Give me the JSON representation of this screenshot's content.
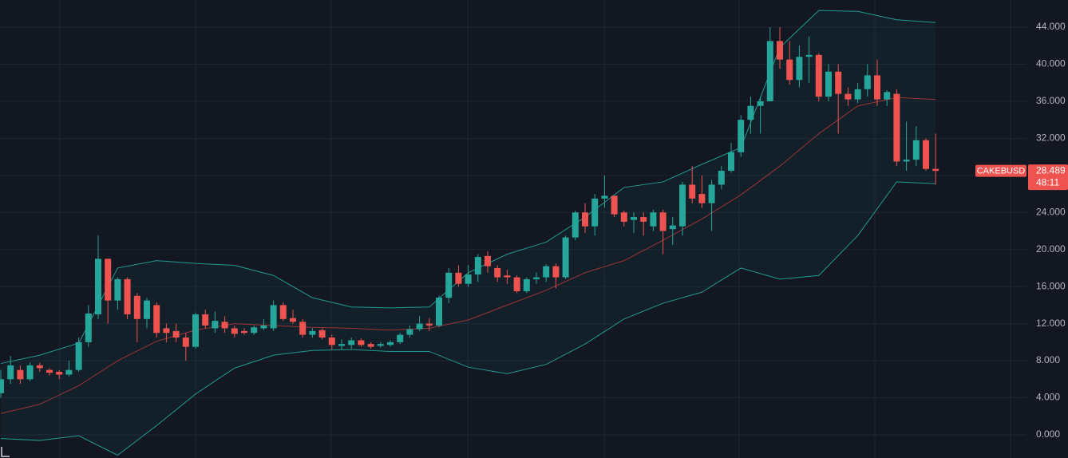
{
  "chart_data": {
    "type": "candlestick",
    "symbol": "CAKEBUSD",
    "last_price": 28.489,
    "countdown": "48:11",
    "up_color": "#26a69a",
    "down_color": "#ef5350",
    "grid": true,
    "ylim": [
      -2.5,
      46.93
    ],
    "yticks": [
      {
        "value": 0,
        "label": "0.000"
      },
      {
        "value": 4,
        "label": "4.000"
      },
      {
        "value": 8,
        "label": "8.000"
      },
      {
        "value": 12,
        "label": "12.000"
      },
      {
        "value": 16,
        "label": "16.000"
      },
      {
        "value": 20,
        "label": "20.000"
      },
      {
        "value": 24,
        "label": "24.000"
      },
      {
        "value": 28,
        "label": "28.000"
      },
      {
        "value": 32,
        "label": "32.000"
      },
      {
        "value": 36,
        "label": "36.000"
      },
      {
        "value": 40,
        "label": "40.000"
      },
      {
        "value": 44,
        "label": "44.000"
      }
    ],
    "open": [
      4.5,
      6,
      7,
      6,
      7.5,
      7,
      6.8,
      6.5,
      7,
      10,
      13,
      19,
      14.5,
      16.8,
      15,
      12.5,
      14,
      11.5,
      11.2,
      10.5,
      9.5,
      13,
      11.5,
      12.2,
      11.5,
      11.2,
      11,
      11.5,
      11.5,
      14,
      12.6,
      12.2,
      10.8,
      11.3,
      10.5,
      9.6,
      9.7,
      10.2,
      9.8,
      9.6,
      9.7,
      10,
      10.8,
      11.4,
      12,
      11.8,
      14.8,
      17.5,
      16.3,
      17.3,
      19.3,
      18,
      17.2,
      17,
      15.5,
      16.8,
      17,
      18.2,
      17,
      21.3,
      24,
      22.5,
      25.5,
      25.8,
      24,
      23.2,
      23.5,
      22.5,
      24,
      22.2,
      22.5,
      27,
      26,
      25,
      27,
      28.5,
      30.5,
      34,
      35.5,
      36,
      42.5,
      40.5,
      38.3,
      40.8,
      41,
      36.5,
      39.2,
      36.8,
      36.2,
      37.3,
      38.8,
      36.2,
      36.8,
      29.5,
      29.7,
      31.8,
      28.7
    ],
    "high": [
      7,
      8.5,
      7.5,
      7.8,
      7.8,
      7.2,
      7,
      8,
      10.5,
      14,
      21.5,
      19,
      17,
      17,
      15.3,
      14.8,
      14.3,
      12,
      12,
      11,
      13.2,
      13.5,
      13.3,
      12.8,
      11.8,
      11.5,
      11.8,
      12.5,
      14.5,
      14.3,
      13.5,
      12.5,
      11.5,
      11.5,
      10.8,
      10.3,
      10.5,
      10.4,
      10,
      10,
      10.2,
      11,
      11.8,
      12.8,
      12.6,
      15,
      18,
      18.3,
      18.3,
      19.5,
      19.8,
      18.3,
      17.8,
      17.2,
      17,
      17.5,
      18.4,
      18.5,
      21.5,
      24.2,
      25,
      26,
      28,
      25.8,
      24.2,
      24,
      24,
      24.3,
      24.3,
      23.5,
      27.3,
      29,
      28,
      27.5,
      29,
      31.5,
      34.5,
      36.5,
      36.5,
      44,
      44,
      42.5,
      42,
      43,
      41.2,
      40,
      40,
      37.5,
      38,
      40,
      40.5,
      37.2,
      37.3,
      33.8,
      33.3,
      32,
      32.5
    ],
    "low": [
      4,
      5.5,
      5.5,
      5.8,
      6.8,
      6.4,
      6,
      6.3,
      6.8,
      9.5,
      12.5,
      12,
      13.5,
      12.5,
      10,
      11.5,
      10.5,
      10,
      10,
      8,
      9.3,
      11.5,
      11,
      11,
      10.5,
      10.8,
      10.8,
      11.3,
      11.2,
      12.3,
      12,
      10.5,
      10.5,
      10.3,
      9.2,
      9.2,
      9.3,
      9.5,
      9.3,
      9.4,
      9.5,
      9.8,
      10.5,
      11.2,
      11.2,
      11.6,
      14.2,
      16,
      16,
      16.5,
      17.5,
      16.5,
      16.3,
      15.3,
      15.3,
      16.3,
      16.5,
      15.8,
      16.8,
      21,
      21.8,
      21.5,
      24.5,
      23.5,
      22.5,
      21.8,
      21.5,
      22,
      19.5,
      20.5,
      21.5,
      25,
      24.5,
      22,
      26.5,
      28.3,
      30,
      32.5,
      32.5,
      36,
      39.5,
      37.8,
      37.5,
      38,
      36,
      36,
      32.5,
      35.5,
      35.8,
      36.5,
      35.5,
      35.5,
      29,
      28.5,
      29,
      28.5,
      27
    ],
    "close": [
      6,
      7.5,
      6,
      7.5,
      7.2,
      6.7,
      6.5,
      7,
      10,
      13.1,
      19,
      14.5,
      16.8,
      13,
      12.5,
      14.5,
      11,
      11,
      10.5,
      9.5,
      13,
      11.8,
      12.3,
      11.5,
      10.9,
      11,
      11.6,
      11.8,
      14,
      12.5,
      12.2,
      10.8,
      11.2,
      10.5,
      9.7,
      9.8,
      10.2,
      9.7,
      9.5,
      9.8,
      10,
      10.8,
      11.4,
      12,
      11.8,
      14.8,
      17.5,
      16.3,
      17.3,
      19.2,
      18.2,
      17,
      17,
      15.5,
      16.8,
      17,
      18.2,
      17,
      21.3,
      24,
      22.5,
      25.5,
      25.8,
      23.8,
      23,
      23.5,
      23,
      24,
      22,
      22.6,
      27,
      25.5,
      25,
      27,
      28.5,
      30.5,
      34,
      35.5,
      36,
      42.5,
      40.5,
      38.3,
      40.8,
      41,
      36.5,
      39.2,
      36.8,
      36.2,
      37.3,
      38.8,
      36.2,
      37,
      29.5,
      29.7,
      31.8,
      28.7,
      28.489
    ],
    "bands": {
      "x": [
        0,
        4,
        8,
        12,
        16,
        20,
        24,
        28,
        32,
        36,
        40,
        44,
        48,
        52,
        56,
        60,
        64,
        68,
        72,
        76,
        80,
        84,
        88,
        92,
        96
      ],
      "upper": [
        7.7,
        8.6,
        9.9,
        18,
        18.8,
        18.5,
        18.3,
        17.2,
        14.8,
        13.8,
        13.7,
        13.8,
        17.5,
        19.5,
        20.8,
        23.5,
        26.7,
        27.3,
        29.2,
        31,
        41.8,
        45.8,
        45.7,
        44.8,
        44.5
      ],
      "middle": [
        2.3,
        3.3,
        5.3,
        8,
        10.1,
        11.3,
        12,
        11.8,
        11.6,
        11.5,
        11.3,
        11.5,
        12.4,
        14,
        15.6,
        17.5,
        18.8,
        21,
        23.3,
        25.9,
        29,
        32.5,
        35.5,
        36.4,
        36.2
      ],
      "lower": [
        -0.4,
        -0.6,
        -0.1,
        -2.2,
        1,
        4.4,
        7.2,
        8.6,
        9.1,
        9.2,
        9,
        9,
        7.3,
        6.6,
        7.6,
        9.8,
        12.5,
        14.2,
        15.4,
        18,
        16.8,
        17.2,
        21.5,
        27.3,
        27.1
      ],
      "color": "#22998e",
      "middle_color": "#9b3535",
      "fill": "#26a69a"
    }
  }
}
